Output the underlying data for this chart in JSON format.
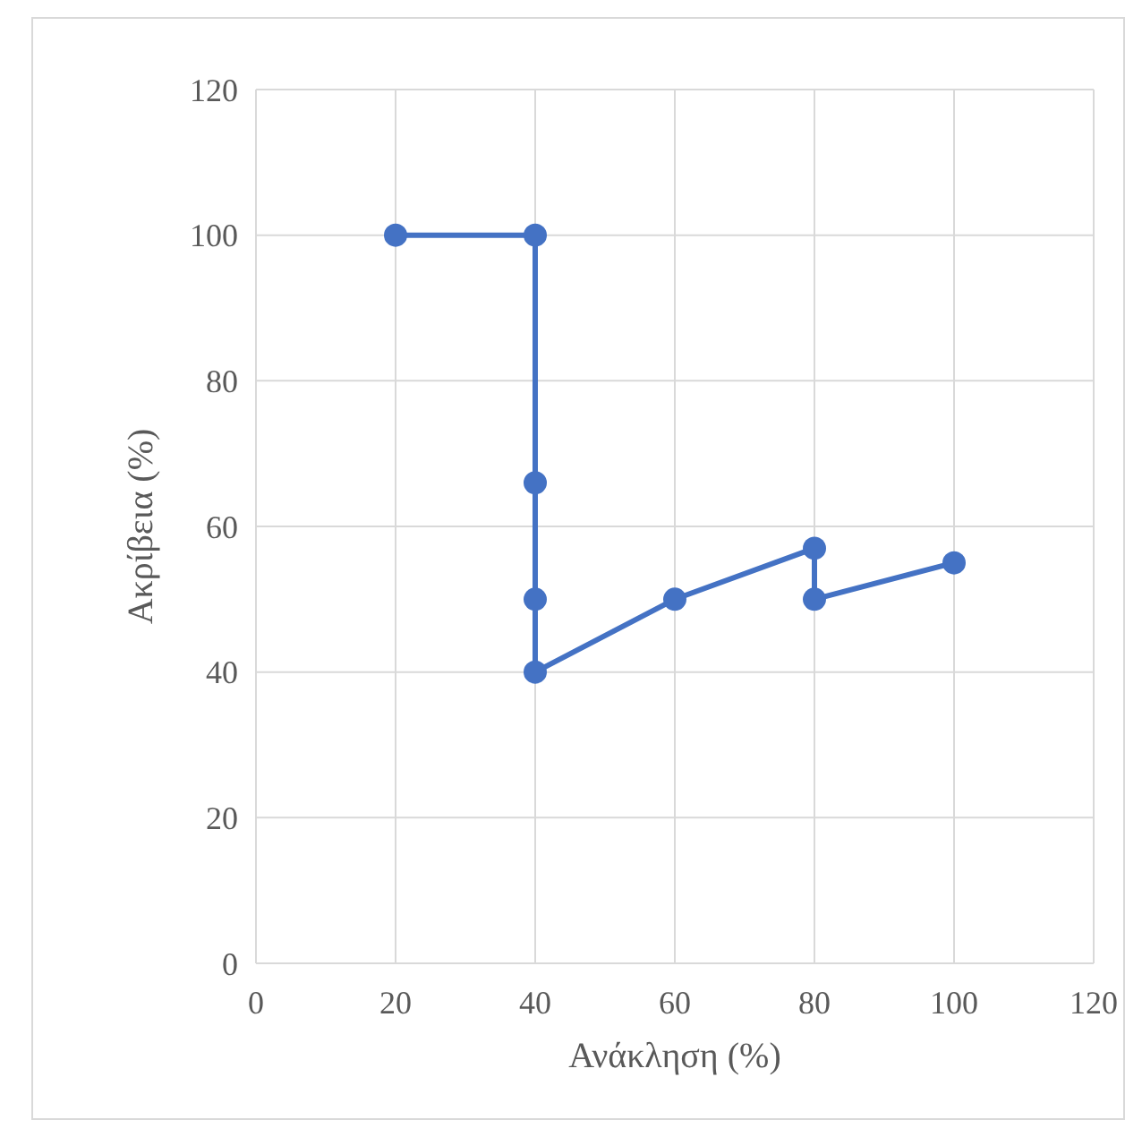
{
  "chart_data": {
    "type": "line",
    "xlabel": "Ανάκληση (%)",
    "ylabel": "Ακρίβεια (%)",
    "x": [
      20,
      40,
      40,
      40,
      40,
      60,
      80,
      80,
      100
    ],
    "series": [
      {
        "color": "#4472c4",
        "values": [
          100,
          100,
          66,
          50,
          40,
          50,
          57,
          50,
          55
        ]
      }
    ],
    "xlim": [
      0,
      120
    ],
    "xticks": [
      0,
      20,
      40,
      60,
      80,
      100,
      120
    ],
    "ylim": [
      0,
      120
    ],
    "yticks": [
      0,
      20,
      40,
      60,
      80,
      100,
      120
    ],
    "grid": true,
    "marker": "circle",
    "line_style": "solid"
  }
}
